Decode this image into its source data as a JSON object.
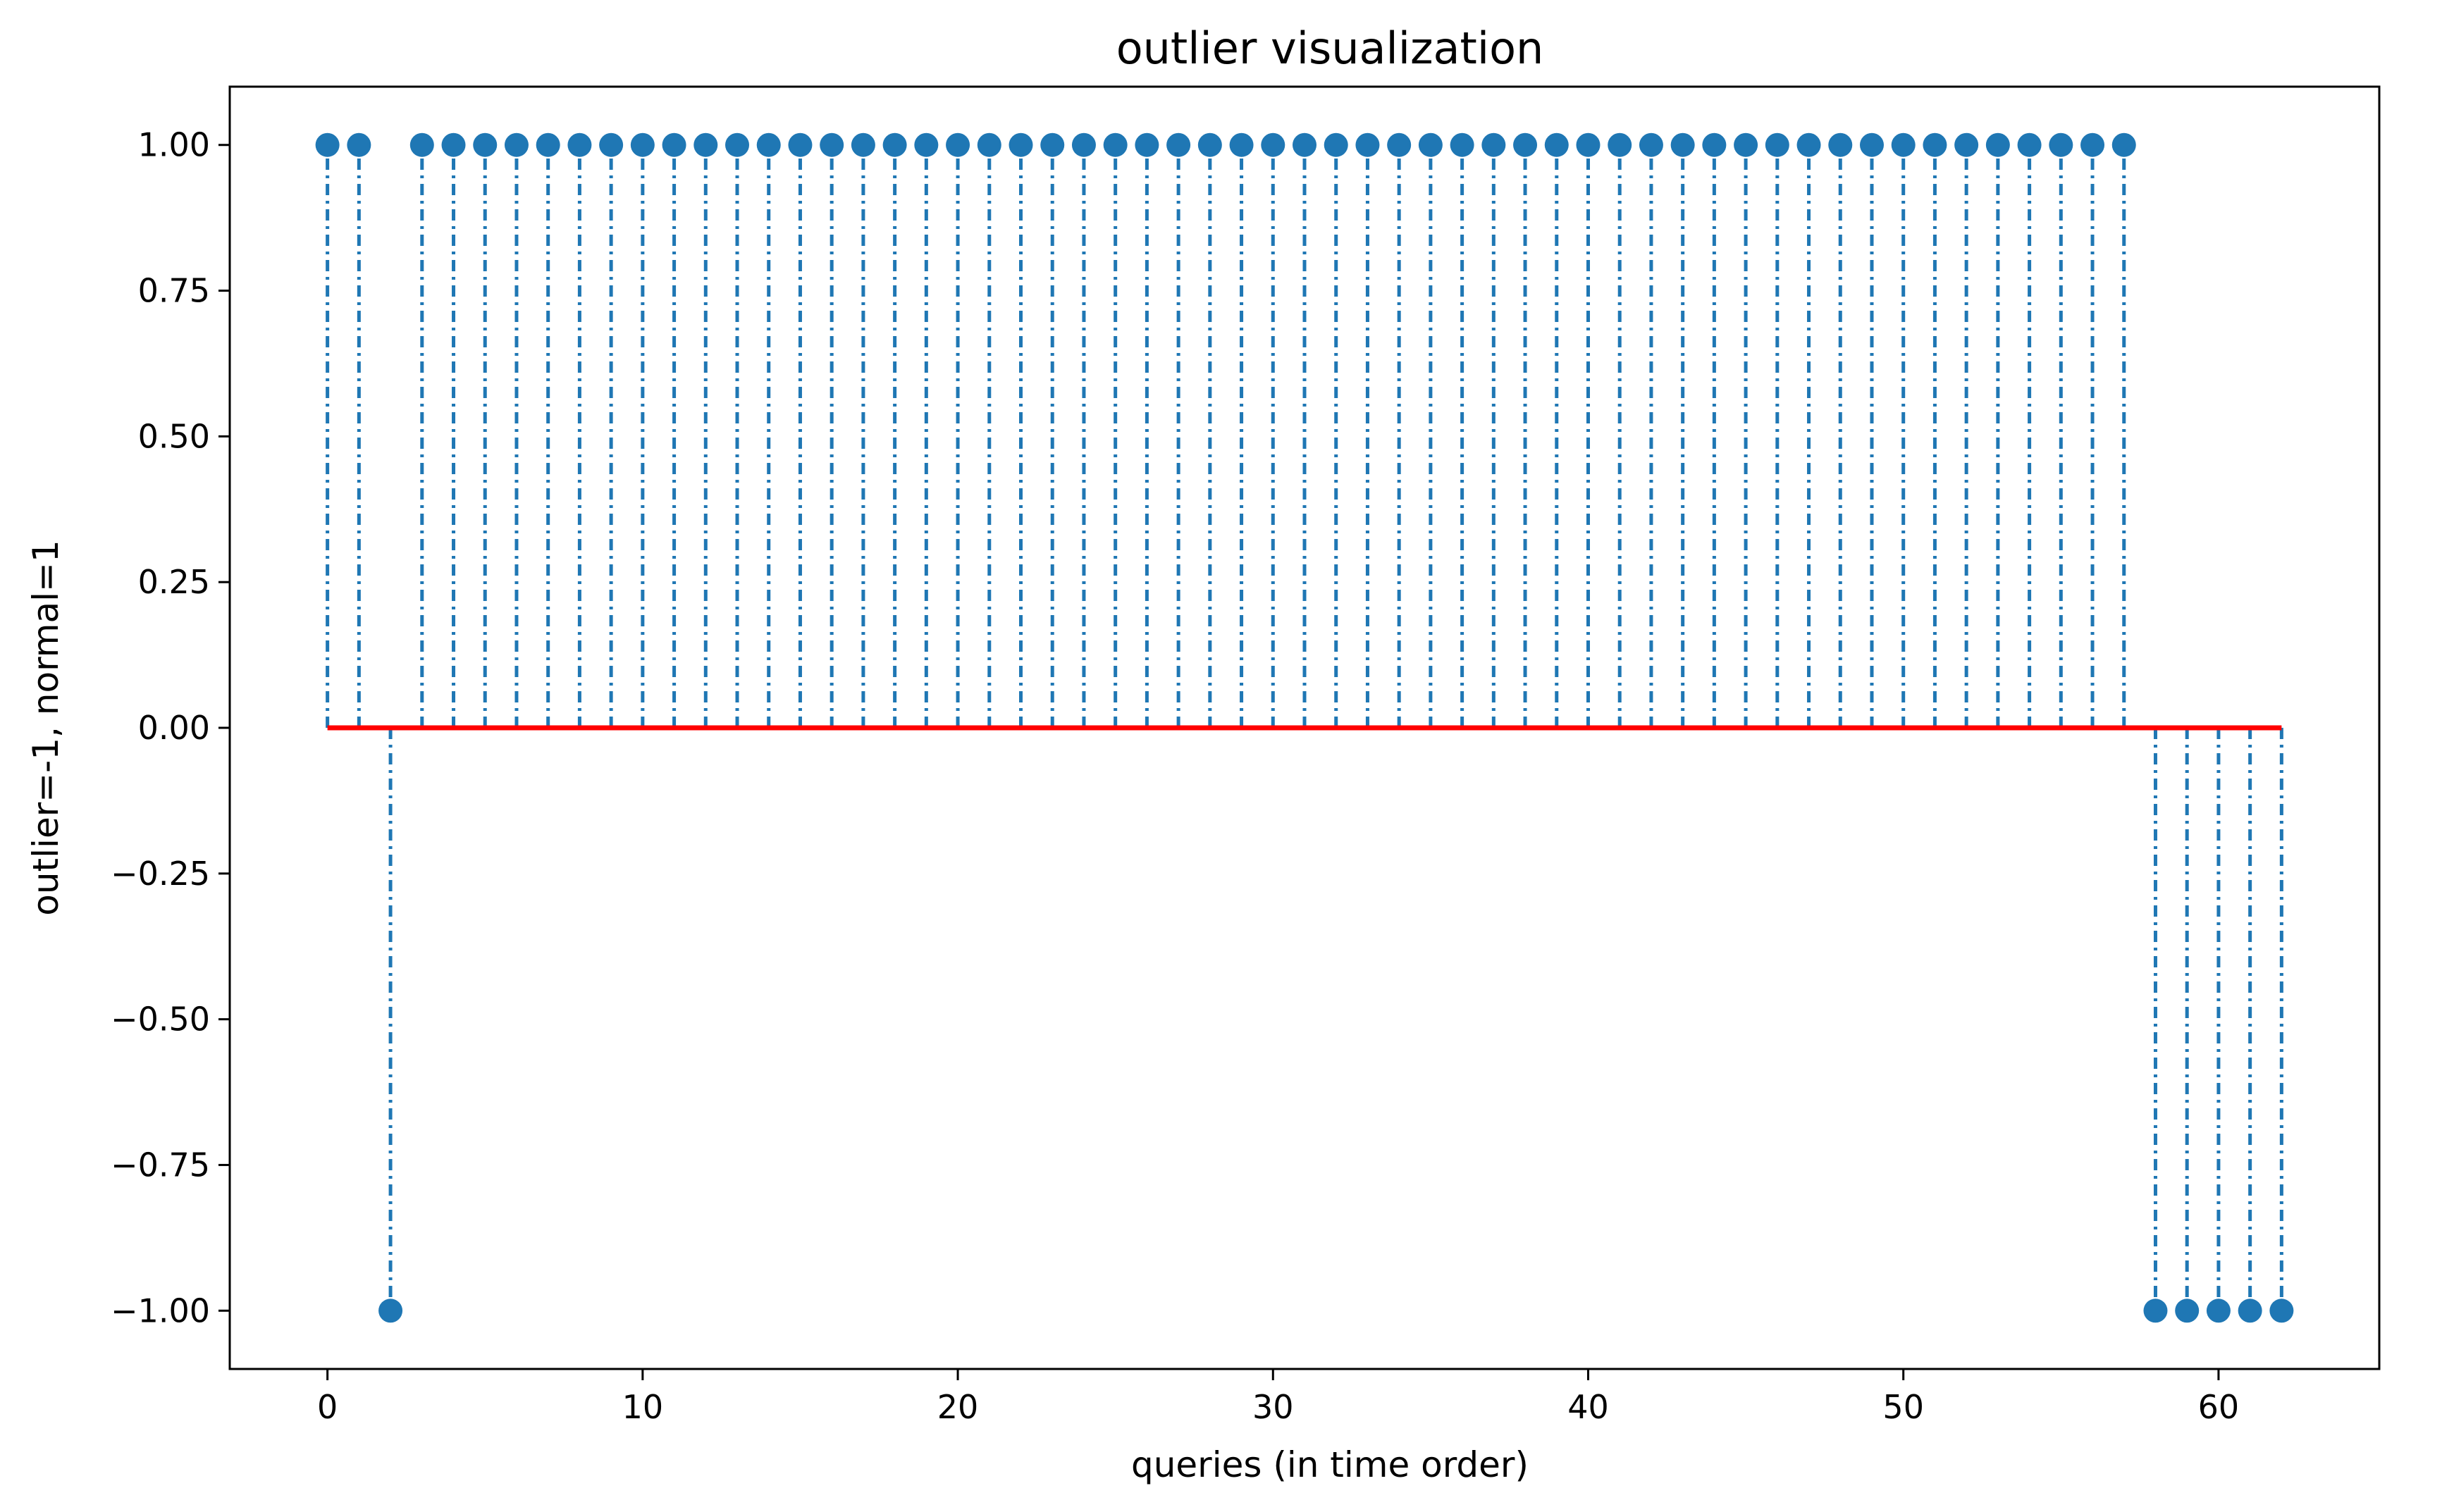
{
  "chart_data": {
    "type": "stem",
    "title": "outlier visualization",
    "xlabel": "queries (in time order)",
    "ylabel": "outlier=-1, normal=1",
    "xlim": [
      -3.1,
      65.1
    ],
    "ylim": [
      -1.1,
      1.1
    ],
    "x_ticks": [
      0,
      10,
      20,
      30,
      40,
      50,
      60
    ],
    "x_tick_labels": [
      "0",
      "10",
      "20",
      "30",
      "40",
      "50",
      "60"
    ],
    "y_ticks": [
      1.0,
      0.75,
      0.5,
      0.25,
      0.0,
      -0.25,
      -0.5,
      -0.75,
      -1.0
    ],
    "y_tick_labels": [
      "1.00",
      "0.75",
      "0.50",
      "0.25",
      "0.00",
      "−0.25",
      "−0.50",
      "−0.75",
      "−1.00"
    ],
    "grid": false,
    "baseline": {
      "value": 0,
      "color": "#ff0000",
      "x_range": [
        0,
        62
      ]
    },
    "stem_color": "#1f77b4",
    "stem_linestyle": "dash-dot",
    "marker": "circle",
    "x": [
      0,
      1,
      2,
      3,
      4,
      5,
      6,
      7,
      8,
      9,
      10,
      11,
      12,
      13,
      14,
      15,
      16,
      17,
      18,
      19,
      20,
      21,
      22,
      23,
      24,
      25,
      26,
      27,
      28,
      29,
      30,
      31,
      32,
      33,
      34,
      35,
      36,
      37,
      38,
      39,
      40,
      41,
      42,
      43,
      44,
      45,
      46,
      47,
      48,
      49,
      50,
      51,
      52,
      53,
      54,
      55,
      56,
      57,
      58,
      59,
      60,
      61,
      62
    ],
    "values": [
      1,
      1,
      -1,
      1,
      1,
      1,
      1,
      1,
      1,
      1,
      1,
      1,
      1,
      1,
      1,
      1,
      1,
      1,
      1,
      1,
      1,
      1,
      1,
      1,
      1,
      1,
      1,
      1,
      1,
      1,
      1,
      1,
      1,
      1,
      1,
      1,
      1,
      1,
      1,
      1,
      1,
      1,
      1,
      1,
      1,
      1,
      1,
      1,
      1,
      1,
      1,
      1,
      1,
      1,
      1,
      1,
      1,
      1,
      -1,
      -1,
      -1,
      -1,
      -1
    ]
  }
}
